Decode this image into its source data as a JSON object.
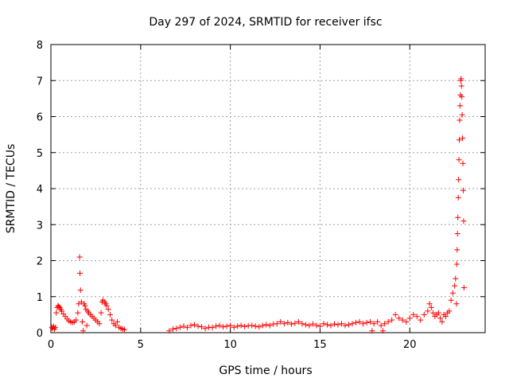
{
  "chart_data": {
    "type": "scatter",
    "title": "Day 297 of 2024, SRMTID for receiver ifsc",
    "xlabel": "GPS time / hours",
    "ylabel": "SRMTID / TECUs",
    "xlim": [
      0,
      24.2
    ],
    "ylim": [
      0,
      8
    ],
    "xticks": [
      0,
      5,
      10,
      15,
      20
    ],
    "yticks": [
      0,
      1,
      2,
      3,
      4,
      5,
      6,
      7,
      8
    ],
    "grid": true,
    "marker": "plus",
    "color": "#ff0000",
    "series": [
      {
        "name": "ifsc",
        "points": [
          [
            0.05,
            0.15
          ],
          [
            0.1,
            0.12
          ],
          [
            0.15,
            0.18
          ],
          [
            0.2,
            0.1
          ],
          [
            0.25,
            0.14
          ],
          [
            0.3,
            0.55
          ],
          [
            0.35,
            0.7
          ],
          [
            0.4,
            0.75
          ],
          [
            0.45,
            0.72
          ],
          [
            0.5,
            0.7
          ],
          [
            0.55,
            0.65
          ],
          [
            0.6,
            0.6
          ],
          [
            0.7,
            0.52
          ],
          [
            0.8,
            0.45
          ],
          [
            0.9,
            0.38
          ],
          [
            1.0,
            0.33
          ],
          [
            1.1,
            0.3
          ],
          [
            1.2,
            0.28
          ],
          [
            1.3,
            0.3
          ],
          [
            1.4,
            0.35
          ],
          [
            1.5,
            0.55
          ],
          [
            1.55,
            0.8
          ],
          [
            1.6,
            2.1
          ],
          [
            1.62,
            1.65
          ],
          [
            1.65,
            1.18
          ],
          [
            1.7,
            0.85
          ],
          [
            1.75,
            0.3
          ],
          [
            1.8,
            0.05
          ],
          [
            1.85,
            0.8
          ],
          [
            1.9,
            0.75
          ],
          [
            1.95,
            0.65
          ],
          [
            2.0,
            0.2
          ],
          [
            2.05,
            0.6
          ],
          [
            2.1,
            0.55
          ],
          [
            2.2,
            0.5
          ],
          [
            2.3,
            0.45
          ],
          [
            2.4,
            0.4
          ],
          [
            2.5,
            0.35
          ],
          [
            2.6,
            0.3
          ],
          [
            2.7,
            0.25
          ],
          [
            2.8,
            0.55
          ],
          [
            2.85,
            0.85
          ],
          [
            2.9,
            0.9
          ],
          [
            3.0,
            0.85
          ],
          [
            3.05,
            0.8
          ],
          [
            3.1,
            0.75
          ],
          [
            3.2,
            0.65
          ],
          [
            3.3,
            0.5
          ],
          [
            3.4,
            0.35
          ],
          [
            3.5,
            0.25
          ],
          [
            3.6,
            0.2
          ],
          [
            3.7,
            0.3
          ],
          [
            3.8,
            0.15
          ],
          [
            3.9,
            0.12
          ],
          [
            4.0,
            0.1
          ],
          [
            4.1,
            0.08
          ],
          [
            6.6,
            0.05
          ],
          [
            6.8,
            0.1
          ],
          [
            7.0,
            0.12
          ],
          [
            7.2,
            0.15
          ],
          [
            7.4,
            0.18
          ],
          [
            7.6,
            0.14
          ],
          [
            7.8,
            0.2
          ],
          [
            8.0,
            0.22
          ],
          [
            8.2,
            0.18
          ],
          [
            8.4,
            0.16
          ],
          [
            8.6,
            0.12
          ],
          [
            8.8,
            0.15
          ],
          [
            9.0,
            0.14
          ],
          [
            9.2,
            0.18
          ],
          [
            9.4,
            0.2
          ],
          [
            9.6,
            0.16
          ],
          [
            9.8,
            0.18
          ],
          [
            10.0,
            0.2
          ],
          [
            10.2,
            0.15
          ],
          [
            10.4,
            0.18
          ],
          [
            10.6,
            0.2
          ],
          [
            10.8,
            0.17
          ],
          [
            11.0,
            0.19
          ],
          [
            11.2,
            0.2
          ],
          [
            11.4,
            0.18
          ],
          [
            11.6,
            0.16
          ],
          [
            11.8,
            0.2
          ],
          [
            12.0,
            0.22
          ],
          [
            12.2,
            0.2
          ],
          [
            12.4,
            0.24
          ],
          [
            12.6,
            0.25
          ],
          [
            12.8,
            0.3
          ],
          [
            13.0,
            0.25
          ],
          [
            13.2,
            0.28
          ],
          [
            13.4,
            0.24
          ],
          [
            13.6,
            0.26
          ],
          [
            13.8,
            0.3
          ],
          [
            14.0,
            0.25
          ],
          [
            14.2,
            0.22
          ],
          [
            14.4,
            0.2
          ],
          [
            14.6,
            0.24
          ],
          [
            14.8,
            0.2
          ],
          [
            15.0,
            0.18
          ],
          [
            15.2,
            0.25
          ],
          [
            15.4,
            0.22
          ],
          [
            15.6,
            0.2
          ],
          [
            15.8,
            0.24
          ],
          [
            16.0,
            0.22
          ],
          [
            16.2,
            0.25
          ],
          [
            16.4,
            0.2
          ],
          [
            16.6,
            0.22
          ],
          [
            16.8,
            0.25
          ],
          [
            17.0,
            0.28
          ],
          [
            17.2,
            0.3
          ],
          [
            17.4,
            0.25
          ],
          [
            17.6,
            0.28
          ],
          [
            17.8,
            0.3
          ],
          [
            17.9,
            0.05
          ],
          [
            18.0,
            0.25
          ],
          [
            18.2,
            0.3
          ],
          [
            18.4,
            0.2
          ],
          [
            18.5,
            0.05
          ],
          [
            18.6,
            0.25
          ],
          [
            18.8,
            0.3
          ],
          [
            19.0,
            0.35
          ],
          [
            19.2,
            0.5
          ],
          [
            19.4,
            0.4
          ],
          [
            19.6,
            0.35
          ],
          [
            19.8,
            0.3
          ],
          [
            20.0,
            0.4
          ],
          [
            20.2,
            0.5
          ],
          [
            20.4,
            0.45
          ],
          [
            20.6,
            0.35
          ],
          [
            20.8,
            0.5
          ],
          [
            21.0,
            0.6
          ],
          [
            21.1,
            0.8
          ],
          [
            21.2,
            0.7
          ],
          [
            21.3,
            0.55
          ],
          [
            21.4,
            0.45
          ],
          [
            21.5,
            0.5
          ],
          [
            21.6,
            0.55
          ],
          [
            21.7,
            0.4
          ],
          [
            21.8,
            0.3
          ],
          [
            21.9,
            0.5
          ],
          [
            22.0,
            0.45
          ],
          [
            22.1,
            0.55
          ],
          [
            22.2,
            0.6
          ],
          [
            22.3,
            0.9
          ],
          [
            22.4,
            1.1
          ],
          [
            22.5,
            1.3
          ],
          [
            22.55,
            1.5
          ],
          [
            22.6,
            0.8
          ],
          [
            22.62,
            1.9
          ],
          [
            22.64,
            2.3
          ],
          [
            22.66,
            2.75
          ],
          [
            22.68,
            3.2
          ],
          [
            22.7,
            3.75
          ],
          [
            22.72,
            4.25
          ],
          [
            22.74,
            4.8
          ],
          [
            22.76,
            5.35
          ],
          [
            22.78,
            5.9
          ],
          [
            22.8,
            6.3
          ],
          [
            22.82,
            6.6
          ],
          [
            22.84,
            7.0
          ],
          [
            22.86,
            7.05
          ],
          [
            22.88,
            6.85
          ],
          [
            22.9,
            6.55
          ],
          [
            22.92,
            6.05
          ],
          [
            22.94,
            5.4
          ],
          [
            22.96,
            4.7
          ],
          [
            22.98,
            3.95
          ],
          [
            23.0,
            3.1
          ],
          [
            23.02,
            1.25
          ]
        ]
      }
    ]
  }
}
